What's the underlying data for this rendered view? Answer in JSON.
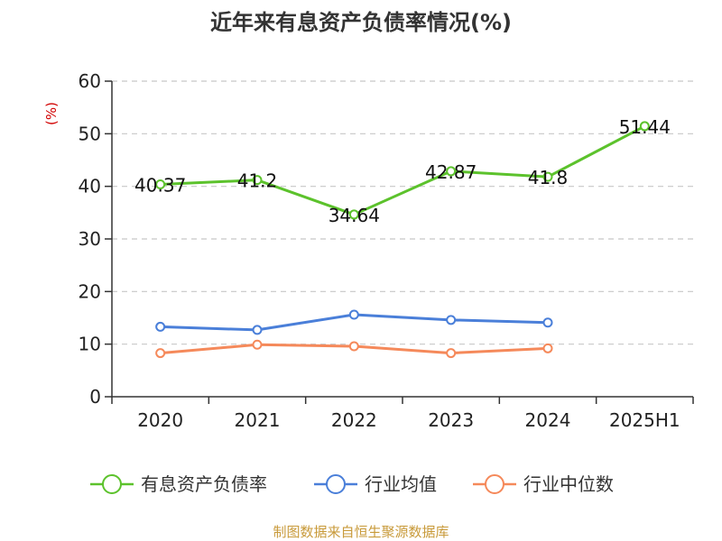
{
  "chart_data": {
    "type": "line",
    "title": "近年来有息资产负债率情况(%)",
    "ylabel": "(%)",
    "xlabel": "",
    "ylim": [
      0,
      60
    ],
    "yticks": [
      0,
      10,
      20,
      30,
      40,
      50,
      60
    ],
    "categories": [
      "2020",
      "2021",
      "2022",
      "2023",
      "2024",
      "2025H1"
    ],
    "grid": true,
    "legend_position": "bottom",
    "series": [
      {
        "name": "有息资产负债率",
        "color": "#5cc22c",
        "values": [
          40.37,
          41.2,
          34.64,
          42.87,
          41.8,
          51.44
        ],
        "labels": [
          "40.37",
          "41.2",
          "34.64",
          "42.87",
          "41.8",
          "51.44"
        ]
      },
      {
        "name": "行业均值",
        "color": "#4a7fd9",
        "values": [
          13.3,
          12.7,
          15.6,
          14.6,
          14.1,
          null
        ]
      },
      {
        "name": "行业中位数",
        "color": "#f5895a",
        "values": [
          8.3,
          9.9,
          9.6,
          8.3,
          9.2,
          null
        ]
      }
    ]
  },
  "source": "制图数据来自恒生聚源数据库"
}
